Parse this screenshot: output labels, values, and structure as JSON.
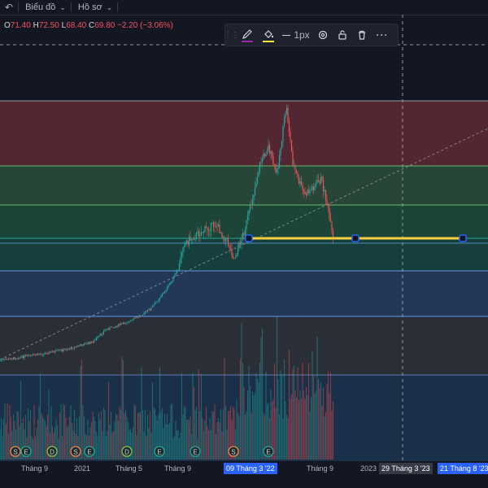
{
  "topbar": {
    "undo_icon": "undo-icon",
    "chart_menu_label": "Biểu đồ",
    "profile_menu_label": "Hồ sơ"
  },
  "ohlc": {
    "open_key": "O",
    "open": "71.40",
    "high_key": "H",
    "high": "72.50",
    "low_key": "L",
    "low": "68.40",
    "close_key": "C",
    "close": "69.80",
    "change": "−2.20 (−3.06%)"
  },
  "drawing_toolbar": {
    "pencil_color": "#9c27b0",
    "fill_color": "#ffeb3b",
    "line_width_label": "1px"
  },
  "colors": {
    "background": "#131722",
    "up": "#26a69a",
    "down": "#ef5350",
    "trendline": "#f4d03f",
    "accent": "#2962ff"
  },
  "time_axis": {
    "labels": [
      "Tháng 9",
      "2021",
      "Tháng 5",
      "Tháng 9",
      "Tháng 9",
      "2023"
    ],
    "highlight_left": "09 Tháng 3 '22",
    "highlight_mid": "29 Tháng 3 '23",
    "highlight_right": "21 Tháng 8 '23"
  },
  "event_markers": [
    "S",
    "E",
    "D",
    "S",
    "E",
    "D",
    "E",
    "E",
    "S",
    "E"
  ]
}
